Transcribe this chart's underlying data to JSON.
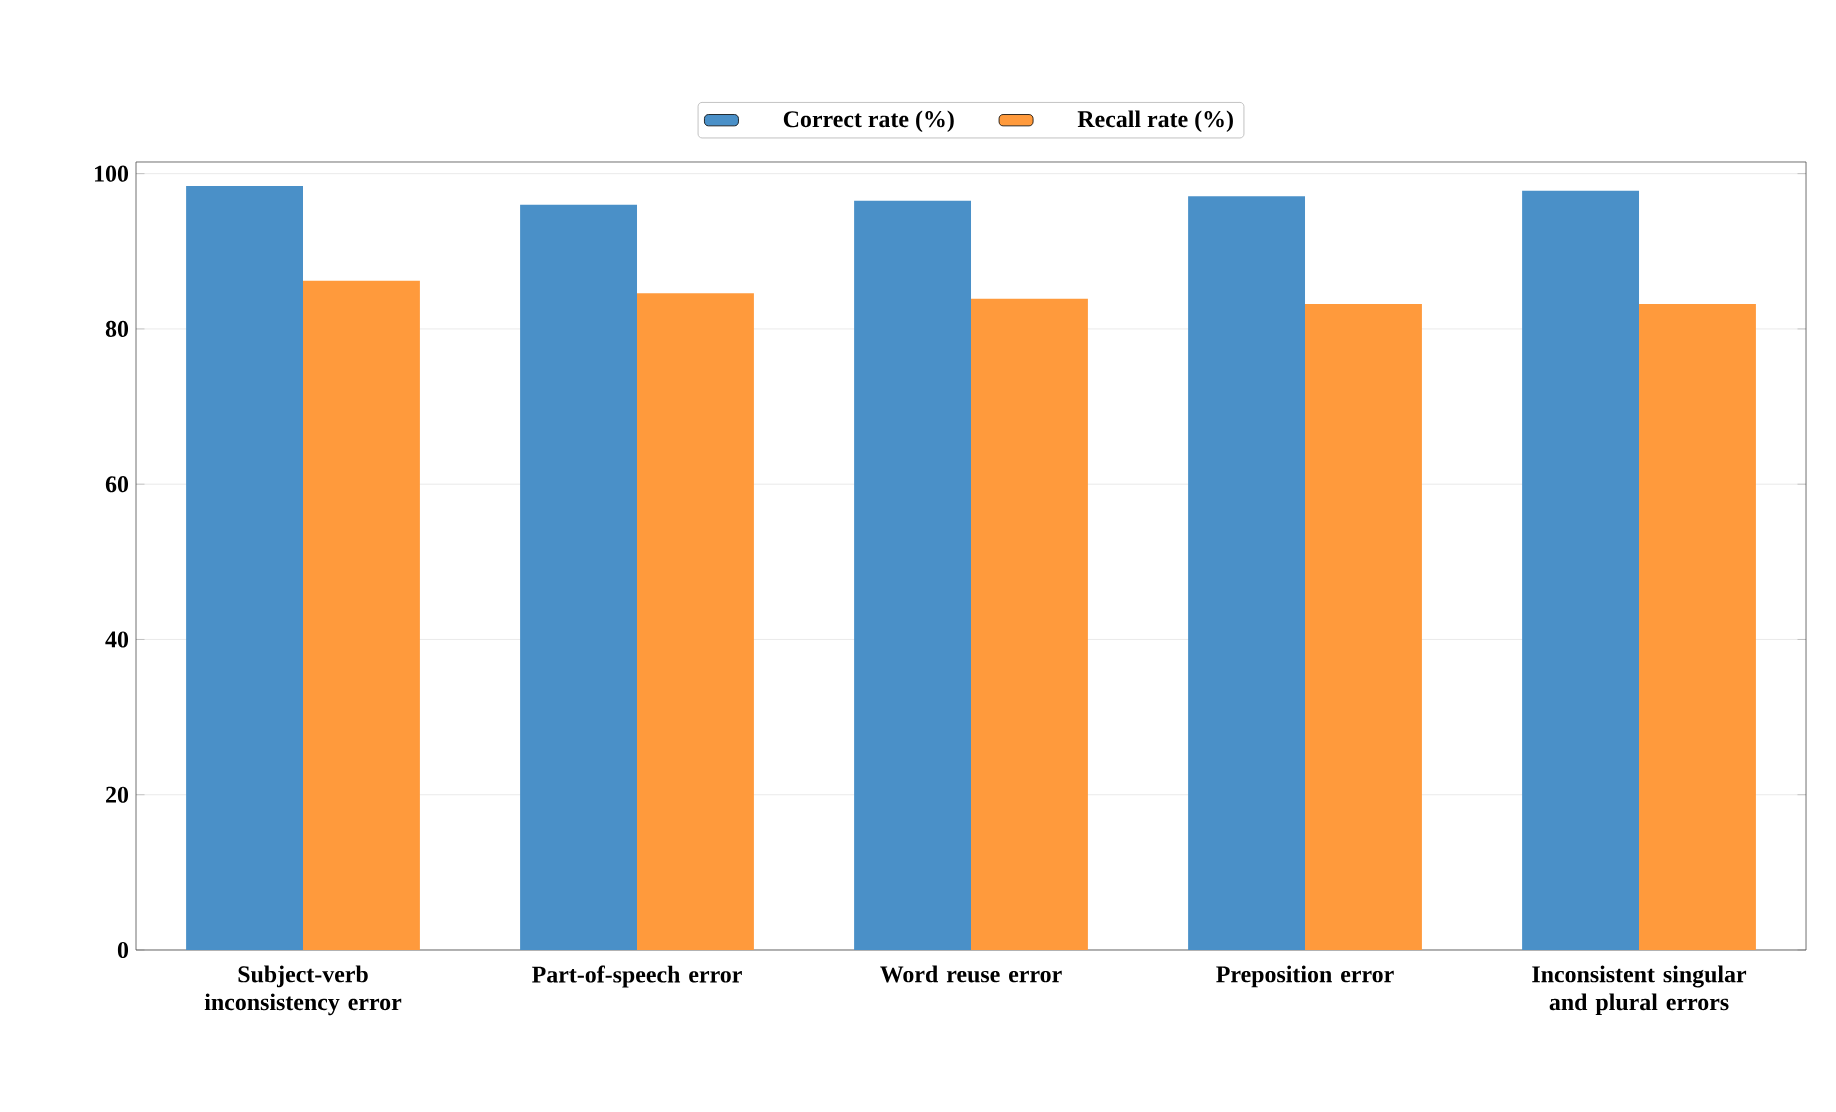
{
  "chart_data": {
    "type": "bar",
    "categories": [
      "Subject-verb inconsistency error",
      "Part-of-speech error",
      "Word reuse error",
      "Preposition error",
      "Inconsistent singular and plural errors"
    ],
    "series": [
      {
        "name": "Correct rate (%)",
        "color": "#4a90c8",
        "values": [
          98.4,
          96.0,
          96.5,
          97.1,
          97.8
        ]
      },
      {
        "name": "Recall rate (%)",
        "color": "#ff9a3c",
        "values": [
          86.2,
          84.6,
          83.9,
          83.2,
          83.2
        ]
      }
    ],
    "ylim": [
      0,
      101.5
    ],
    "yticks": [
      0,
      20,
      40,
      60,
      80,
      100
    ],
    "grid": "y",
    "legend": "top"
  }
}
